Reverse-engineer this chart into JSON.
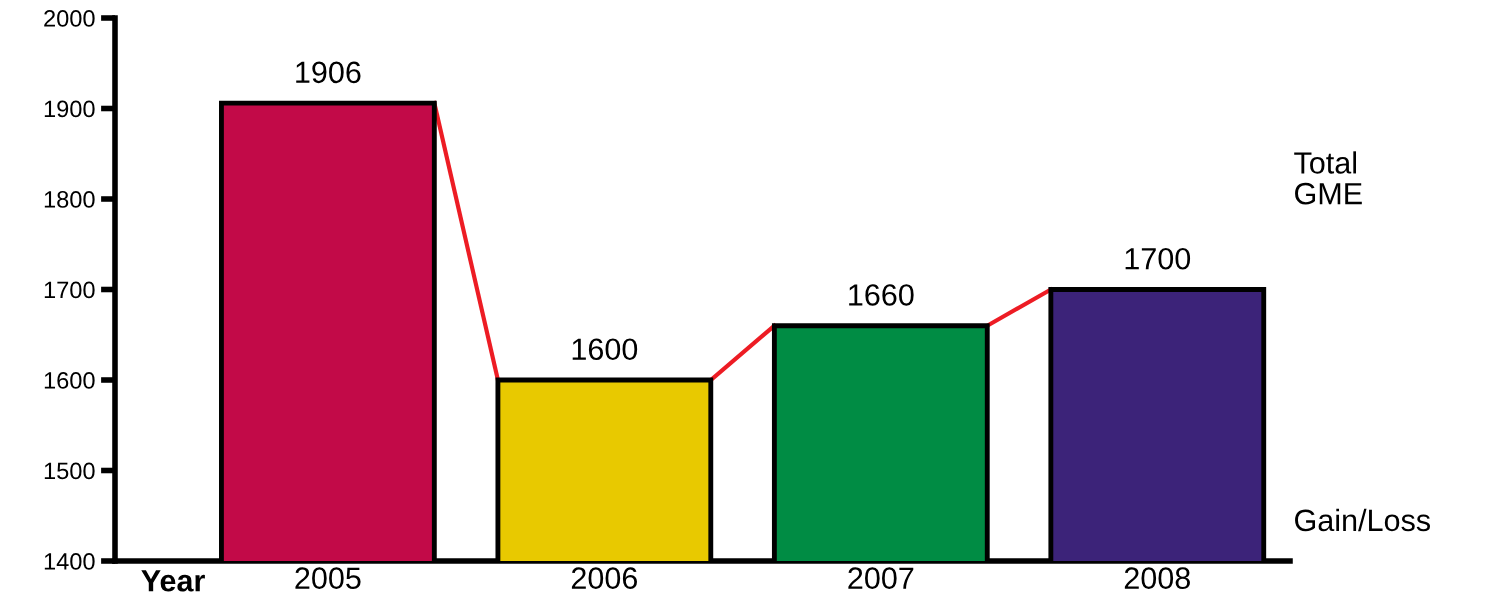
{
  "chart_data": {
    "type": "bar",
    "xlabel": "Year",
    "categories": [
      "2005",
      "2006",
      "2007",
      "2008"
    ],
    "values": [
      1906,
      1600,
      1660,
      1700
    ],
    "colors": [
      "#c20a48",
      "#e8c900",
      "#008c44",
      "#3c2379"
    ],
    "data_labels": true,
    "ylim": [
      1400,
      2000
    ],
    "yticks": [
      1400,
      1500,
      1600,
      1700,
      1800,
      1900,
      2000
    ],
    "annotations": [
      "Total\nGME",
      "Gain/Loss"
    ]
  }
}
